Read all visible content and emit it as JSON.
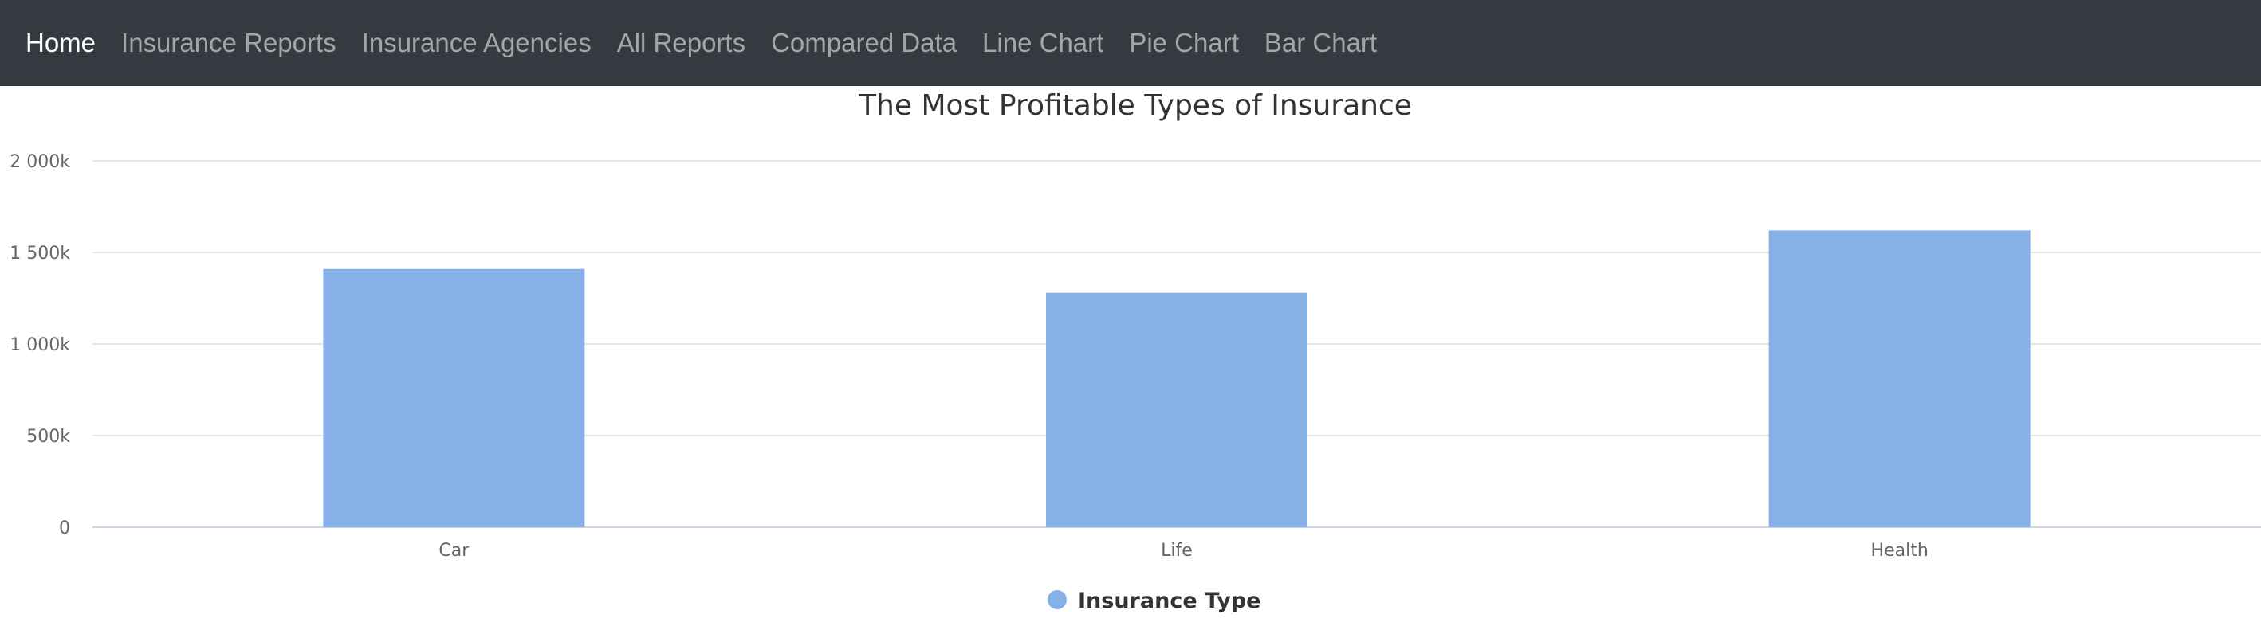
{
  "navbar": {
    "items": [
      {
        "label": "Home",
        "active": true
      },
      {
        "label": "Insurance Reports",
        "active": false
      },
      {
        "label": "Insurance Agencies",
        "active": false
      },
      {
        "label": "All Reports",
        "active": false
      },
      {
        "label": "Compared Data",
        "active": false
      },
      {
        "label": "Line Chart",
        "active": false
      },
      {
        "label": "Pie Chart",
        "active": false
      },
      {
        "label": "Bar Chart",
        "active": false
      }
    ]
  },
  "chart_data": {
    "type": "bar",
    "title": "The Most Profitable Types of Insurance",
    "categories": [
      "Car",
      "Life",
      "Health"
    ],
    "series": [
      {
        "name": "Insurance Type",
        "values": [
          1410,
          1280,
          1620
        ]
      }
    ],
    "unit_suffix": "k",
    "ylim": [
      0,
      2000
    ],
    "yticks": [
      0,
      500,
      1000,
      1500,
      2000
    ],
    "ytick_labels": [
      "0",
      "500k",
      "1 000k",
      "1 500k",
      "2 000k"
    ],
    "grid": true,
    "legend": "bottom-center",
    "colors": {
      "bar": "#87b1e6",
      "grid": "#e6e6e6",
      "axis": "#ccd6eb",
      "text": "#666666",
      "title": "#333333"
    }
  }
}
